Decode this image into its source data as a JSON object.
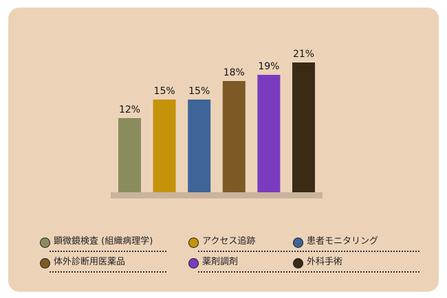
{
  "chart_data": {
    "type": "bar",
    "categories": [
      "顕微鏡検査 (組織病理学)",
      "アクセス追跡",
      "患者モニタリング",
      "体外診断用医薬品",
      "薬剤調剤",
      "外科手術"
    ],
    "values": [
      12,
      15,
      15,
      18,
      19,
      21
    ],
    "value_labels": [
      "12%",
      "15%",
      "15%",
      "18%",
      "19%",
      "21%"
    ],
    "colors": [
      "#8a8c5d",
      "#c4930a",
      "#3e6498",
      "#7d5a25",
      "#7a3bbf",
      "#3b2a14"
    ],
    "ylim": [
      0,
      22
    ],
    "grid": false,
    "legend_position": "bottom"
  },
  "legend": [
    {
      "label": "顕微鏡検査 (組織病理学)",
      "color": "#8a8c5d"
    },
    {
      "label": "アクセス追跡",
      "color": "#c4930a"
    },
    {
      "label": "患者モニタリング",
      "color": "#3e6498"
    },
    {
      "label": "体外診断用医薬品",
      "color": "#7d5a25"
    },
    {
      "label": "薬剤調剤",
      "color": "#7a3bbf"
    },
    {
      "label": "外科手術",
      "color": "#3b2a14"
    }
  ]
}
